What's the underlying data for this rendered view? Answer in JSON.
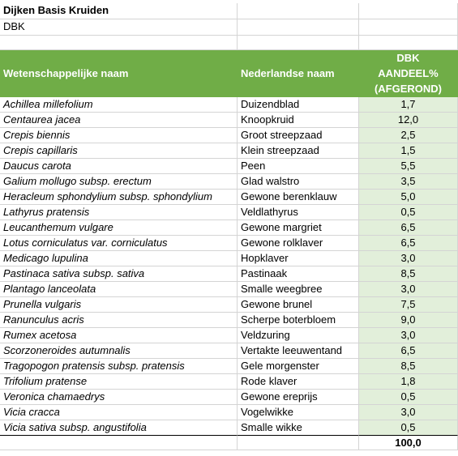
{
  "title": "Dijken Basis Kruiden",
  "subtitle": "DBK",
  "table": {
    "headers": {
      "scientific": "Wetenschappelijke naam",
      "dutch": "Nederlandse naam",
      "share_line1": "DBK",
      "share_line2": "AANDEEL%",
      "share_line3": "(AFGEROND)"
    },
    "rows": [
      {
        "scientific": "Achillea millefolium",
        "dutch": "Duizendblad",
        "share": "1,7"
      },
      {
        "scientific": "Centaurea jacea",
        "dutch": "Knoopkruid",
        "share": "12,0"
      },
      {
        "scientific": "Crepis biennis",
        "dutch": "Groot streepzaad",
        "share": "2,5"
      },
      {
        "scientific": "Crepis capillaris",
        "dutch": "Klein streepzaad",
        "share": "1,5"
      },
      {
        "scientific": "Daucus carota",
        "dutch": "Peen",
        "share": "5,5"
      },
      {
        "scientific": "Galium mollugo subsp. erectum",
        "dutch": "Glad walstro",
        "share": "3,5"
      },
      {
        "scientific": "Heracleum sphondylium subsp. sphondylium",
        "dutch": "Gewone berenklauw",
        "share": "5,0"
      },
      {
        "scientific": "Lathyrus pratensis",
        "dutch": "Veldlathyrus",
        "share": "0,5"
      },
      {
        "scientific": "Leucanthemum vulgare",
        "dutch": "Gewone margriet",
        "share": "6,5"
      },
      {
        "scientific": "Lotus corniculatus var. corniculatus",
        "dutch": "Gewone rolklaver",
        "share": "6,5"
      },
      {
        "scientific": "Medicago lupulina",
        "dutch": "Hopklaver",
        "share": "3,0"
      },
      {
        "scientific": "Pastinaca sativa subsp. sativa",
        "dutch": "Pastinaak",
        "share": "8,5"
      },
      {
        "scientific": "Plantago lanceolata",
        "dutch": "Smalle weegbree",
        "share": "3,0"
      },
      {
        "scientific": "Prunella vulgaris",
        "dutch": "Gewone brunel",
        "share": "7,5"
      },
      {
        "scientific": "Ranunculus acris",
        "dutch": "Scherpe boterbloem",
        "share": "9,0"
      },
      {
        "scientific": "Rumex acetosa",
        "dutch": "Veldzuring",
        "share": "3,0"
      },
      {
        "scientific": "Scorzoneroides autumnalis",
        "dutch": "Vertakte leeuwentand",
        "share": "6,5"
      },
      {
        "scientific": "Tragopogon pratensis subsp. pratensis",
        "dutch": "Gele morgenster",
        "share": "8,5"
      },
      {
        "scientific": "Trifolium pratense",
        "dutch": "Rode klaver",
        "share": "1,8"
      },
      {
        "scientific": "Veronica chamaedrys",
        "dutch": "Gewone ereprijs",
        "share": "0,5"
      },
      {
        "scientific": "Vicia cracca",
        "dutch": "Vogelwikke",
        "share": "3,0"
      },
      {
        "scientific": "Vicia sativa subsp. angustifolia",
        "dutch": "Smalle wikke",
        "share": "0,5"
      }
    ],
    "total": "100,0"
  },
  "colors": {
    "header_bg": "#70ad47",
    "header_text": "#ffffff",
    "share_cell_bg": "#e2efda"
  }
}
